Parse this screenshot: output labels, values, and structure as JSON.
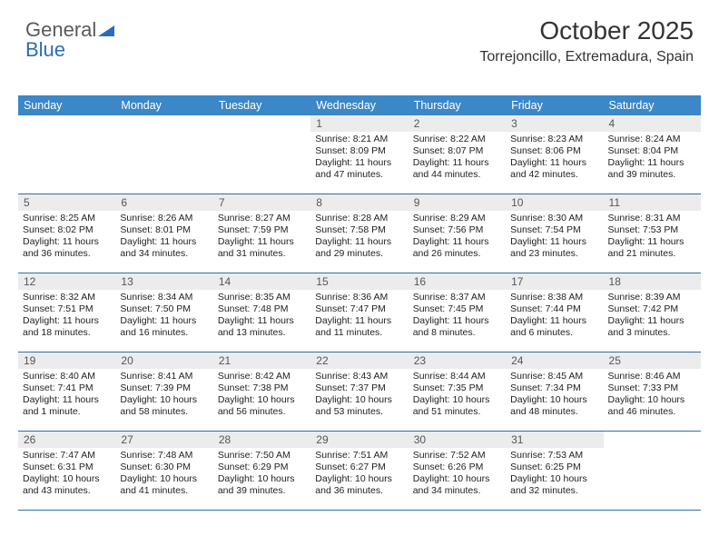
{
  "logo": {
    "word1": "General",
    "word2": "Blue"
  },
  "header": {
    "title": "October 2025",
    "subtitle": "Torrejoncillo, Extremadura, Spain"
  },
  "colors": {
    "header_bar": "#3b87c8",
    "header_text": "#ffffff",
    "daynum_bg": "#ececec",
    "daynum_text": "#555555",
    "week_border": "#2f6fa8",
    "logo_gray": "#5a5a5a",
    "logo_blue": "#2a6db8",
    "title_color": "#333333",
    "body_text": "#222222",
    "bg": "#ffffff"
  },
  "columns": [
    "Sunday",
    "Monday",
    "Tuesday",
    "Wednesday",
    "Thursday",
    "Friday",
    "Saturday"
  ],
  "layout": {
    "lead_blanks": 3
  },
  "days": [
    {
      "n": "1",
      "sr": "8:21 AM",
      "ss": "8:09 PM",
      "dl": "11 hours and 47 minutes."
    },
    {
      "n": "2",
      "sr": "8:22 AM",
      "ss": "8:07 PM",
      "dl": "11 hours and 44 minutes."
    },
    {
      "n": "3",
      "sr": "8:23 AM",
      "ss": "8:06 PM",
      "dl": "11 hours and 42 minutes."
    },
    {
      "n": "4",
      "sr": "8:24 AM",
      "ss": "8:04 PM",
      "dl": "11 hours and 39 minutes."
    },
    {
      "n": "5",
      "sr": "8:25 AM",
      "ss": "8:02 PM",
      "dl": "11 hours and 36 minutes."
    },
    {
      "n": "6",
      "sr": "8:26 AM",
      "ss": "8:01 PM",
      "dl": "11 hours and 34 minutes."
    },
    {
      "n": "7",
      "sr": "8:27 AM",
      "ss": "7:59 PM",
      "dl": "11 hours and 31 minutes."
    },
    {
      "n": "8",
      "sr": "8:28 AM",
      "ss": "7:58 PM",
      "dl": "11 hours and 29 minutes."
    },
    {
      "n": "9",
      "sr": "8:29 AM",
      "ss": "7:56 PM",
      "dl": "11 hours and 26 minutes."
    },
    {
      "n": "10",
      "sr": "8:30 AM",
      "ss": "7:54 PM",
      "dl": "11 hours and 23 minutes."
    },
    {
      "n": "11",
      "sr": "8:31 AM",
      "ss": "7:53 PM",
      "dl": "11 hours and 21 minutes."
    },
    {
      "n": "12",
      "sr": "8:32 AM",
      "ss": "7:51 PM",
      "dl": "11 hours and 18 minutes."
    },
    {
      "n": "13",
      "sr": "8:34 AM",
      "ss": "7:50 PM",
      "dl": "11 hours and 16 minutes."
    },
    {
      "n": "14",
      "sr": "8:35 AM",
      "ss": "7:48 PM",
      "dl": "11 hours and 13 minutes."
    },
    {
      "n": "15",
      "sr": "8:36 AM",
      "ss": "7:47 PM",
      "dl": "11 hours and 11 minutes."
    },
    {
      "n": "16",
      "sr": "8:37 AM",
      "ss": "7:45 PM",
      "dl": "11 hours and 8 minutes."
    },
    {
      "n": "17",
      "sr": "8:38 AM",
      "ss": "7:44 PM",
      "dl": "11 hours and 6 minutes."
    },
    {
      "n": "18",
      "sr": "8:39 AM",
      "ss": "7:42 PM",
      "dl": "11 hours and 3 minutes."
    },
    {
      "n": "19",
      "sr": "8:40 AM",
      "ss": "7:41 PM",
      "dl": "11 hours and 1 minute."
    },
    {
      "n": "20",
      "sr": "8:41 AM",
      "ss": "7:39 PM",
      "dl": "10 hours and 58 minutes."
    },
    {
      "n": "21",
      "sr": "8:42 AM",
      "ss": "7:38 PM",
      "dl": "10 hours and 56 minutes."
    },
    {
      "n": "22",
      "sr": "8:43 AM",
      "ss": "7:37 PM",
      "dl": "10 hours and 53 minutes."
    },
    {
      "n": "23",
      "sr": "8:44 AM",
      "ss": "7:35 PM",
      "dl": "10 hours and 51 minutes."
    },
    {
      "n": "24",
      "sr": "8:45 AM",
      "ss": "7:34 PM",
      "dl": "10 hours and 48 minutes."
    },
    {
      "n": "25",
      "sr": "8:46 AM",
      "ss": "7:33 PM",
      "dl": "10 hours and 46 minutes."
    },
    {
      "n": "26",
      "sr": "7:47 AM",
      "ss": "6:31 PM",
      "dl": "10 hours and 43 minutes."
    },
    {
      "n": "27",
      "sr": "7:48 AM",
      "ss": "6:30 PM",
      "dl": "10 hours and 41 minutes."
    },
    {
      "n": "28",
      "sr": "7:50 AM",
      "ss": "6:29 PM",
      "dl": "10 hours and 39 minutes."
    },
    {
      "n": "29",
      "sr": "7:51 AM",
      "ss": "6:27 PM",
      "dl": "10 hours and 36 minutes."
    },
    {
      "n": "30",
      "sr": "7:52 AM",
      "ss": "6:26 PM",
      "dl": "10 hours and 34 minutes."
    },
    {
      "n": "31",
      "sr": "7:53 AM",
      "ss": "6:25 PM",
      "dl": "10 hours and 32 minutes."
    }
  ],
  "labels": {
    "sunrise": "Sunrise: ",
    "sunset": "Sunset: ",
    "daylight": "Daylight: "
  },
  "typography": {
    "title_fontsize": 28,
    "subtitle_fontsize": 16,
    "header_fontsize": 12.5,
    "daynum_fontsize": 12,
    "cell_fontsize": 10.5
  }
}
